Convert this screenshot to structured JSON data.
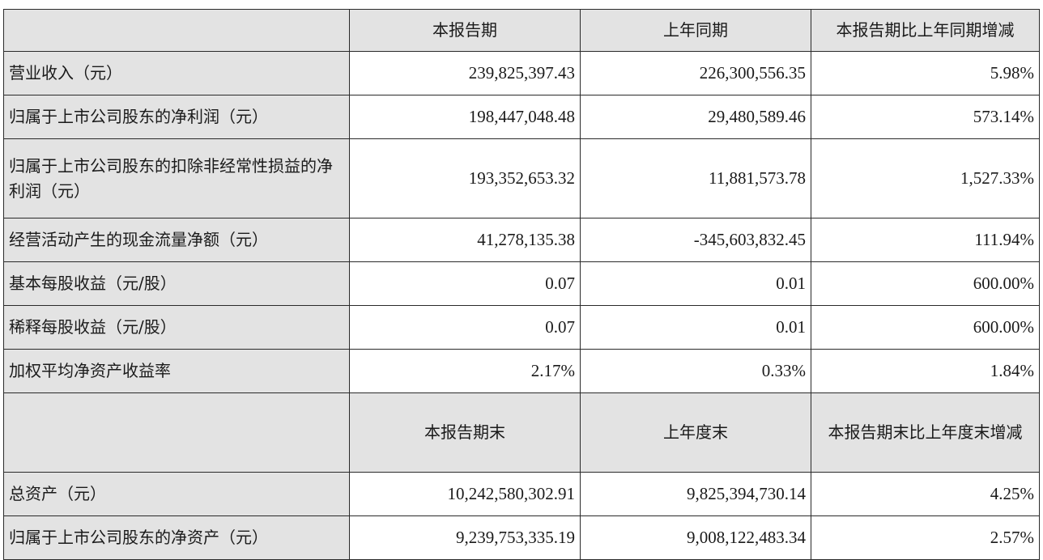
{
  "header1": {
    "col0": "",
    "col1": "本报告期",
    "col2": "上年同期",
    "col3": "本报告期比上年同期增减"
  },
  "rows1": [
    {
      "label": "营业收入（元）",
      "current": "239,825,397.43",
      "prior": "226,300,556.35",
      "change": "5.98%"
    },
    {
      "label": "归属于上市公司股东的净利润（元）",
      "current": "198,447,048.48",
      "prior": "29,480,589.46",
      "change": "573.14%"
    },
    {
      "label": "归属于上市公司股东的扣除非经常性损益的净利润（元）",
      "current": "193,352,653.32",
      "prior": "11,881,573.78",
      "change": "1,527.33%"
    },
    {
      "label": "经营活动产生的现金流量净额（元）",
      "current": "41,278,135.38",
      "prior": "-345,603,832.45",
      "change": "111.94%"
    },
    {
      "label": "基本每股收益（元/股）",
      "current": "0.07",
      "prior": "0.01",
      "change": "600.00%"
    },
    {
      "label": "稀释每股收益（元/股）",
      "current": "0.07",
      "prior": "0.01",
      "change": "600.00%"
    },
    {
      "label": "加权平均净资产收益率",
      "current": "2.17%",
      "prior": "0.33%",
      "change": "1.84%"
    }
  ],
  "header2": {
    "col0": "",
    "col1": "本报告期末",
    "col2": "上年度末",
    "col3": "本报告期末比上年度末增减"
  },
  "rows2": [
    {
      "label": "总资产（元）",
      "current": "10,242,580,302.91",
      "prior": "9,825,394,730.14",
      "change": "4.25%"
    },
    {
      "label": "归属于上市公司股东的净资产（元）",
      "current": "9,239,753,335.19",
      "prior": "9,008,122,483.34",
      "change": "2.57%"
    }
  ]
}
